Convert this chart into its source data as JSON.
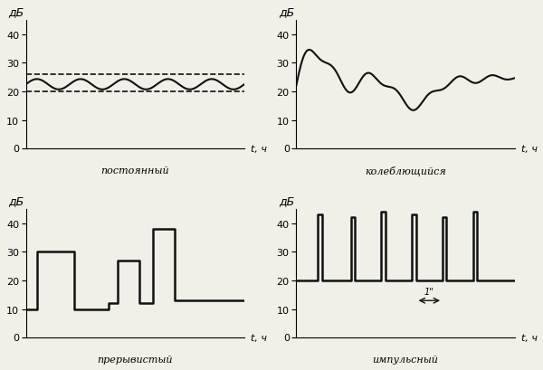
{
  "fig_width": 6.0,
  "fig_height": 4.1,
  "dpi": 100,
  "bg_color": "#f0efe8",
  "ylim": [
    0,
    45
  ],
  "yticks": [
    0,
    10,
    20,
    30,
    40
  ],
  "xlabel": "t, ч",
  "ylabel": "дБ",
  "labels": [
    "постоянный",
    "колеблющийся",
    "прерывистый",
    "импульсный"
  ],
  "line_color": "#111111",
  "dashed_color": "#111111"
}
